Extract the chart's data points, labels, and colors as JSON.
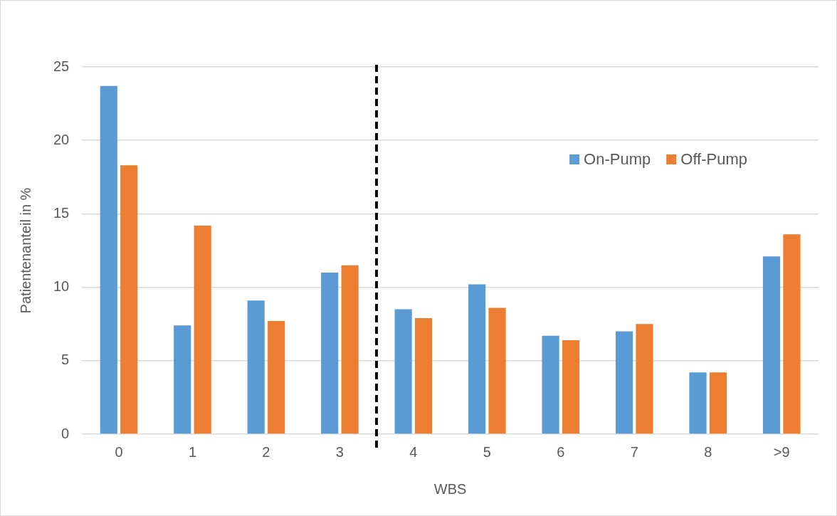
{
  "chart_data": {
    "type": "bar",
    "xlabel": "WBS",
    "ylabel": "Patientenanteil in %",
    "categories": [
      "0",
      "1",
      "2",
      "3",
      "4",
      "5",
      "6",
      "7",
      "8",
      ">9"
    ],
    "series": [
      {
        "name": "On-Pump",
        "color": "#5b9bd5",
        "values": [
          23.7,
          7.4,
          9.1,
          11.0,
          8.5,
          10.2,
          6.7,
          7.0,
          4.2,
          12.1
        ]
      },
      {
        "name": "Off-Pump",
        "color": "#ed7d31",
        "values": [
          18.3,
          14.2,
          7.7,
          11.5,
          7.9,
          8.6,
          6.4,
          7.5,
          4.2,
          13.6
        ]
      }
    ],
    "ylim": [
      0,
      25
    ],
    "yticks": [
      0,
      5,
      10,
      15,
      20,
      25
    ],
    "grid": "y",
    "legend": "top right"
  }
}
